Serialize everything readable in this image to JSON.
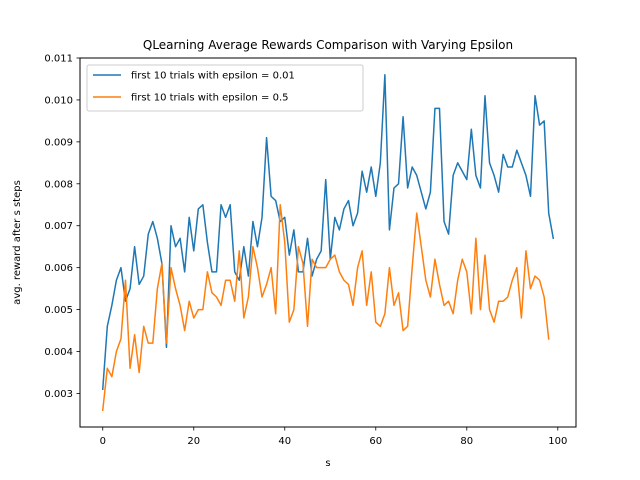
{
  "chart_data": {
    "type": "line",
    "title": "QLearning Average Rewards Comparison with Varying Epsilon",
    "xlabel": "s",
    "ylabel": "avg. reward after s steps",
    "xlim": [
      -5,
      104
    ],
    "ylim": [
      0.0022,
      0.011
    ],
    "xticks": [
      0,
      20,
      40,
      60,
      80,
      100
    ],
    "yticks": [
      0.003,
      0.004,
      0.005,
      0.006,
      0.007,
      0.008,
      0.009,
      0.01,
      0.011
    ],
    "ytick_labels": [
      "0.003",
      "0.004",
      "0.005",
      "0.006",
      "0.007",
      "0.008",
      "0.009",
      "0.010",
      "0.011"
    ],
    "grid": false,
    "legend_position": "upper-left",
    "series": [
      {
        "name": "first 10 trials with epsilon = 0.01",
        "color": "#1f77b4",
        "values": [
          0.0031,
          0.0046,
          0.0051,
          0.0057,
          0.006,
          0.0052,
          0.0055,
          0.0065,
          0.0056,
          0.0058,
          0.0068,
          0.0071,
          0.0067,
          0.0061,
          0.0041,
          0.007,
          0.0065,
          0.0067,
          0.0059,
          0.0072,
          0.0064,
          0.0074,
          0.0075,
          0.0066,
          0.0059,
          0.0059,
          0.0075,
          0.0072,
          0.0075,
          0.0059,
          0.0057,
          0.0065,
          0.0058,
          0.0071,
          0.0065,
          0.0072,
          0.0091,
          0.0077,
          0.0076,
          0.0071,
          0.0072,
          0.0063,
          0.0069,
          0.0059,
          0.0059,
          0.0067,
          0.0058,
          0.0062,
          0.0064,
          0.0081,
          0.0062,
          0.0072,
          0.0069,
          0.0074,
          0.0076,
          0.007,
          0.0073,
          0.0083,
          0.0078,
          0.0084,
          0.0077,
          0.0085,
          0.0106,
          0.0069,
          0.0079,
          0.008,
          0.0096,
          0.0079,
          0.0084,
          0.0082,
          0.0078,
          0.0074,
          0.0078,
          0.0098,
          0.0098,
          0.0071,
          0.0068,
          0.0082,
          0.0085,
          0.0083,
          0.0081,
          0.0093,
          0.0082,
          0.0079,
          0.0101,
          0.0085,
          0.0082,
          0.0078,
          0.0087,
          0.0084,
          0.0084,
          0.0088,
          0.0085,
          0.0082,
          0.0077,
          0.0101,
          0.0094,
          0.0095,
          0.0073,
          0.0067
        ]
      },
      {
        "name": "first 10 trials with epsilon = 0.5",
        "color": "#ff7f0e",
        "values": [
          0.0026,
          0.0036,
          0.0034,
          0.004,
          0.0043,
          0.0057,
          0.0036,
          0.0044,
          0.0035,
          0.0046,
          0.0042,
          0.0042,
          0.0055,
          0.0061,
          0.0042,
          0.006,
          0.0055,
          0.0051,
          0.0045,
          0.0052,
          0.0048,
          0.005,
          0.005,
          0.0059,
          0.0054,
          0.0053,
          0.0051,
          0.0057,
          0.0057,
          0.0052,
          0.0064,
          0.0048,
          0.0053,
          0.0065,
          0.006,
          0.0053,
          0.0056,
          0.006,
          0.0049,
          0.0075,
          0.0066,
          0.0047,
          0.005,
          0.0065,
          0.0061,
          0.0046,
          0.0062,
          0.006,
          0.006,
          0.006,
          0.0062,
          0.0063,
          0.0059,
          0.0057,
          0.0056,
          0.0051,
          0.006,
          0.0064,
          0.0051,
          0.0059,
          0.0047,
          0.0046,
          0.0049,
          0.006,
          0.0051,
          0.0054,
          0.0045,
          0.0046,
          0.006,
          0.0073,
          0.0065,
          0.0057,
          0.0053,
          0.0062,
          0.0056,
          0.0051,
          0.0052,
          0.0049,
          0.0057,
          0.0062,
          0.0059,
          0.0049,
          0.0067,
          0.005,
          0.0063,
          0.005,
          0.0047,
          0.0052,
          0.0052,
          0.0053,
          0.0057,
          0.006,
          0.0048,
          0.0064,
          0.0055,
          0.0058,
          0.0057,
          0.0053,
          0.0043
        ]
      }
    ]
  }
}
